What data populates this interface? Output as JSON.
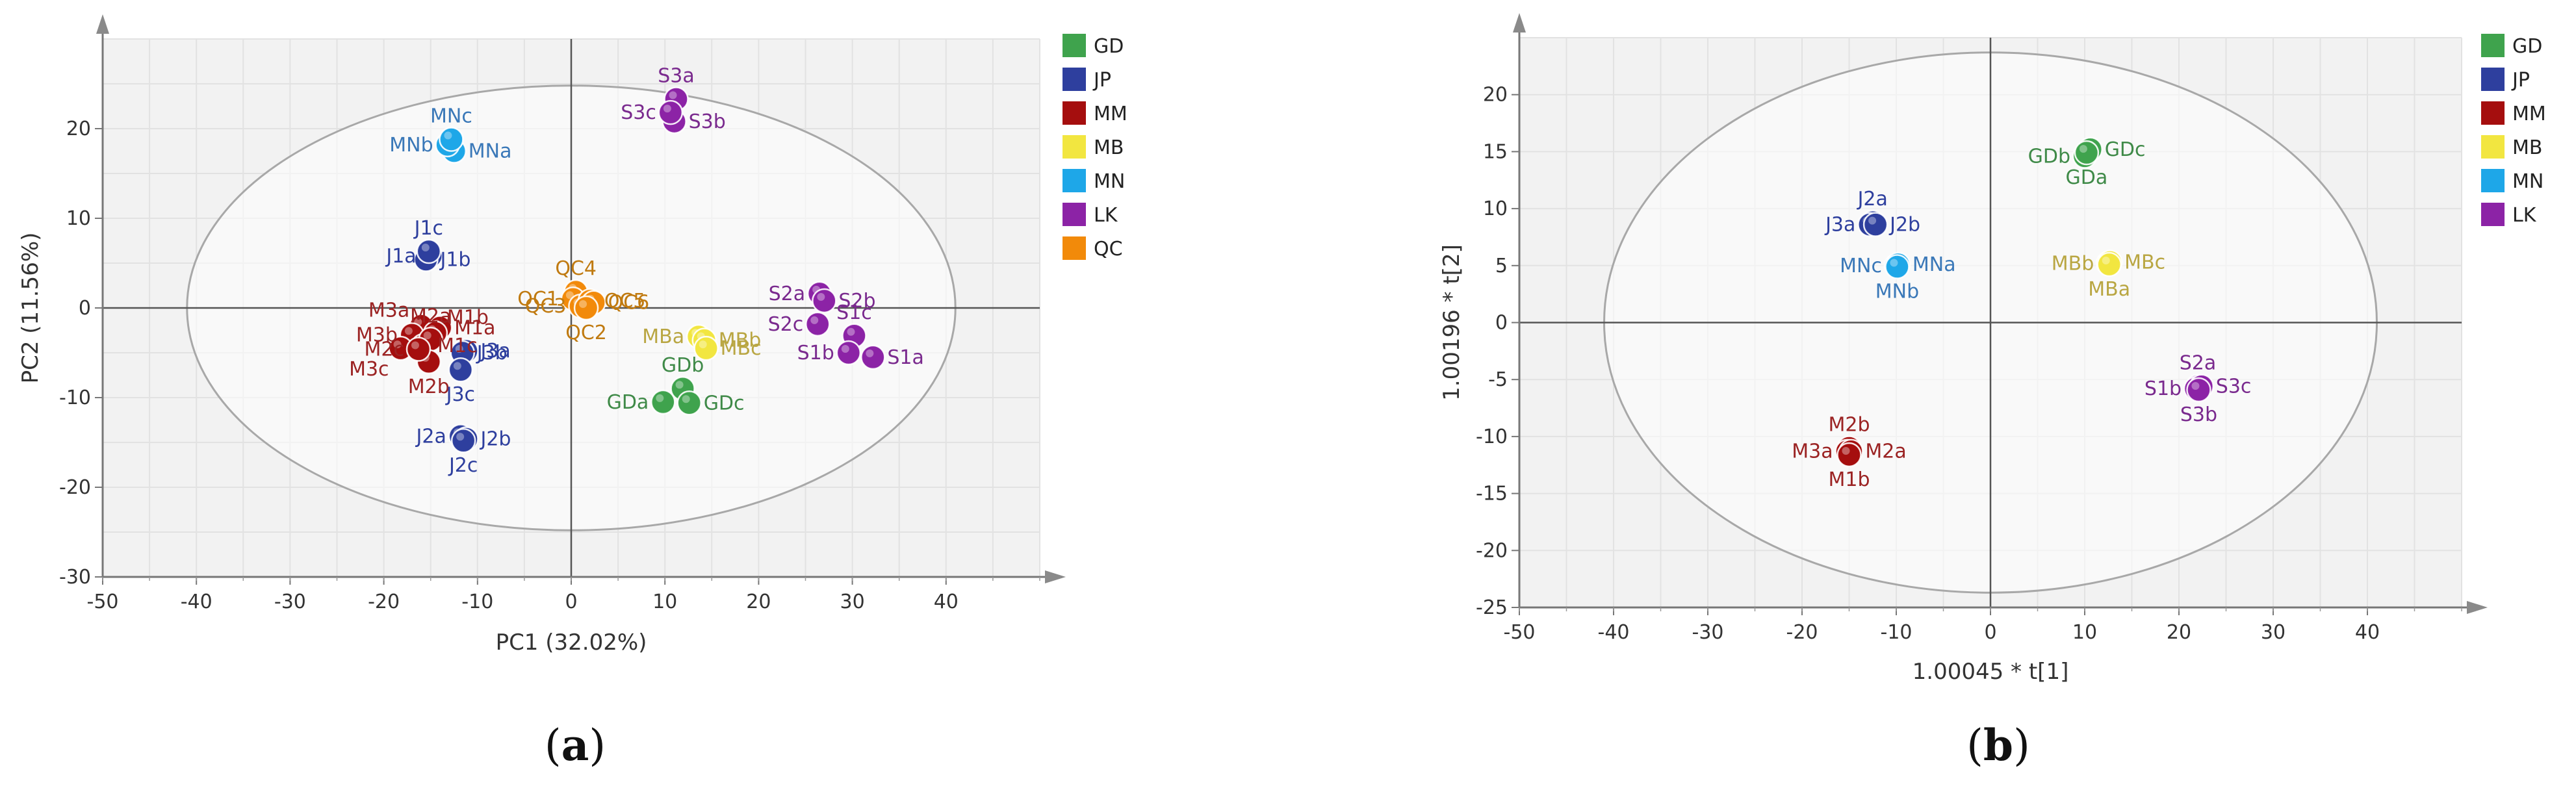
{
  "captions": {
    "a_open": "(",
    "a_letter": "a",
    "a_close": ")",
    "b_open": "(",
    "b_letter": "b",
    "b_close": ")"
  },
  "chart_data": [
    {
      "id": "a",
      "type": "scatter",
      "title": "",
      "xlabel": "PC1 (32.02%)",
      "ylabel": "PC2 (11.56%)",
      "xlim": [
        -50,
        50
      ],
      "ylim": [
        -30,
        30
      ],
      "x_ticks": [
        -50,
        -40,
        -30,
        -20,
        -10,
        0,
        10,
        20,
        30,
        40
      ],
      "y_ticks": [
        -30,
        -20,
        -10,
        0,
        10,
        20
      ],
      "grid": true,
      "ellipse": {
        "cx": 0,
        "cy": 0,
        "rx": 41,
        "ry": 24.8
      },
      "legend_position": "right",
      "legend": [
        {
          "name": "GD",
          "color": "#3fa34d"
        },
        {
          "name": "JP",
          "color": "#2e3f9e"
        },
        {
          "name": "MM",
          "color": "#a50e0e"
        },
        {
          "name": "MB",
          "color": "#f2e640"
        },
        {
          "name": "MN",
          "color": "#1ea7e8"
        },
        {
          "name": "LK",
          "color": "#8c23a6"
        },
        {
          "name": "QC",
          "color": "#f28a0a"
        }
      ],
      "points": [
        {
          "label": "MNa",
          "x": -12.5,
          "y": 17.5,
          "group": "MN",
          "color": "#1ea7e8",
          "text_color": "#3a78b8",
          "anchor": "right"
        },
        {
          "label": "MNb",
          "x": -13.2,
          "y": 18.2,
          "group": "MN",
          "color": "#1ea7e8",
          "text_color": "#3a78b8",
          "anchor": "left"
        },
        {
          "label": "MNc",
          "x": -12.8,
          "y": 18.8,
          "group": "MN",
          "color": "#1ea7e8",
          "text_color": "#3a78b8",
          "anchor": "above"
        },
        {
          "label": "S3a",
          "x": 11.2,
          "y": 23.3,
          "group": "LK",
          "color": "#8c23a6",
          "text_color": "#7a2a8e",
          "anchor": "above"
        },
        {
          "label": "S3b",
          "x": 11.0,
          "y": 20.8,
          "group": "LK",
          "color": "#8c23a6",
          "text_color": "#7a2a8e",
          "anchor": "right"
        },
        {
          "label": "S3c",
          "x": 10.6,
          "y": 21.8,
          "group": "LK",
          "color": "#8c23a6",
          "text_color": "#7a2a8e",
          "anchor": "left"
        },
        {
          "label": "J1a",
          "x": -15.0,
          "y": 5.8,
          "group": "JP",
          "color": "#2e3f9e",
          "text_color": "#2e3f9e",
          "anchor": "left"
        },
        {
          "label": "J1b",
          "x": -15.5,
          "y": 5.4,
          "group": "JP",
          "color": "#2e3f9e",
          "text_color": "#2e3f9e",
          "anchor": "right"
        },
        {
          "label": "J1c",
          "x": -15.2,
          "y": 6.3,
          "group": "JP",
          "color": "#2e3f9e",
          "text_color": "#2e3f9e",
          "anchor": "above"
        },
        {
          "label": "QC4",
          "x": 0.5,
          "y": 1.8,
          "group": "QC",
          "color": "#f28a0a",
          "text_color": "#c07a10",
          "anchor": "above"
        },
        {
          "label": "QC1",
          "x": 0.2,
          "y": 1.0,
          "group": "QC",
          "color": "#f28a0a",
          "text_color": "#c07a10",
          "anchor": "left"
        },
        {
          "label": "QC3",
          "x": 1.0,
          "y": 0.2,
          "group": "QC",
          "color": "#f28a0a",
          "text_color": "#c07a10",
          "anchor": "left"
        },
        {
          "label": "QC5",
          "x": 2.0,
          "y": 0.8,
          "group": "QC",
          "color": "#f28a0a",
          "text_color": "#c07a10",
          "anchor": "right"
        },
        {
          "label": "QC6",
          "x": 2.4,
          "y": 0.6,
          "group": "QC",
          "color": "#f28a0a",
          "text_color": "#c07a10",
          "anchor": "right"
        },
        {
          "label": "QC2",
          "x": 1.6,
          "y": 0.0,
          "group": "QC",
          "color": "#f28a0a",
          "text_color": "#c07a10",
          "anchor": "below"
        },
        {
          "label": "M3a",
          "x": -16.0,
          "y": -2.0,
          "group": "MM",
          "color": "#a50e0e",
          "text_color": "#9b2323",
          "anchor": "above-left"
        },
        {
          "label": "M3b",
          "x": -17.0,
          "y": -3.0,
          "group": "MM",
          "color": "#a50e0e",
          "text_color": "#9b2323",
          "anchor": "left"
        },
        {
          "label": "M3c",
          "x": -18.2,
          "y": -4.5,
          "group": "MM",
          "color": "#a50e0e",
          "text_color": "#9b2323",
          "anchor": "below-left"
        },
        {
          "label": "M1a",
          "x": -14.0,
          "y": -2.2,
          "group": "MM",
          "color": "#a50e0e",
          "text_color": "#9b2323",
          "anchor": "right"
        },
        {
          "label": "M1b",
          "x": -14.5,
          "y": -2.8,
          "group": "MM",
          "color": "#a50e0e",
          "text_color": "#9b2323",
          "anchor": "above-right"
        },
        {
          "label": "M1c",
          "x": -15.8,
          "y": -4.2,
          "group": "MM",
          "color": "#a50e0e",
          "text_color": "#9b2323",
          "anchor": "right"
        },
        {
          "label": "M2a",
          "x": -15.0,
          "y": -3.5,
          "group": "MM",
          "color": "#a50e0e",
          "text_color": "#9b2323",
          "anchor": "above"
        },
        {
          "label": "M2b",
          "x": -15.2,
          "y": -6.0,
          "group": "MM",
          "color": "#a50e0e",
          "text_color": "#9b2323",
          "anchor": "below"
        },
        {
          "label": "M2c",
          "x": -16.3,
          "y": -4.6,
          "group": "MM",
          "color": "#a50e0e",
          "text_color": "#9b2323",
          "anchor": "left"
        },
        {
          "label": "J3a",
          "x": -11.2,
          "y": -4.8,
          "group": "JP",
          "color": "#2e3f9e",
          "text_color": "#2e3f9e",
          "anchor": "right"
        },
        {
          "label": "J3b",
          "x": -11.6,
          "y": -5.0,
          "group": "JP",
          "color": "#2e3f9e",
          "text_color": "#2e3f9e",
          "anchor": "right"
        },
        {
          "label": "J3c",
          "x": -11.8,
          "y": -6.9,
          "group": "JP",
          "color": "#2e3f9e",
          "text_color": "#2e3f9e",
          "anchor": "below"
        },
        {
          "label": "J2a",
          "x": -11.8,
          "y": -14.3,
          "group": "JP",
          "color": "#2e3f9e",
          "text_color": "#2e3f9e",
          "anchor": "left"
        },
        {
          "label": "J2b",
          "x": -11.2,
          "y": -14.6,
          "group": "JP",
          "color": "#2e3f9e",
          "text_color": "#2e3f9e",
          "anchor": "right"
        },
        {
          "label": "J2c",
          "x": -11.5,
          "y": -14.8,
          "group": "JP",
          "color": "#2e3f9e",
          "text_color": "#2e3f9e",
          "anchor": "below"
        },
        {
          "label": "S2a",
          "x": 26.5,
          "y": 1.6,
          "group": "LK",
          "color": "#8c23a6",
          "text_color": "#7a2a8e",
          "anchor": "left"
        },
        {
          "label": "S2b",
          "x": 27.0,
          "y": 0.8,
          "group": "LK",
          "color": "#8c23a6",
          "text_color": "#7a2a8e",
          "anchor": "right"
        },
        {
          "label": "S2c",
          "x": 26.3,
          "y": -1.8,
          "group": "LK",
          "color": "#8c23a6",
          "text_color": "#7a2a8e",
          "anchor": "left"
        },
        {
          "label": "S1c",
          "x": 30.2,
          "y": -3.1,
          "group": "LK",
          "color": "#8c23a6",
          "text_color": "#7a2a8e",
          "anchor": "above"
        },
        {
          "label": "S1b",
          "x": 29.6,
          "y": -5.0,
          "group": "LK",
          "color": "#8c23a6",
          "text_color": "#7a2a8e",
          "anchor": "left"
        },
        {
          "label": "S1a",
          "x": 32.2,
          "y": -5.5,
          "group": "LK",
          "color": "#8c23a6",
          "text_color": "#7a2a8e",
          "anchor": "right"
        },
        {
          "label": "MBa",
          "x": 13.6,
          "y": -3.2,
          "group": "MB",
          "color": "#f2e640",
          "text_color": "#b9a642",
          "anchor": "left"
        },
        {
          "label": "MBb",
          "x": 14.2,
          "y": -3.6,
          "group": "MB",
          "color": "#f2e640",
          "text_color": "#b9a642",
          "anchor": "right"
        },
        {
          "label": "MBc",
          "x": 14.4,
          "y": -4.5,
          "group": "MB",
          "color": "#f2e640",
          "text_color": "#b9a642",
          "anchor": "right"
        },
        {
          "label": "GDb",
          "x": 11.9,
          "y": -9.0,
          "group": "GD",
          "color": "#3fa34d",
          "text_color": "#3f8a48",
          "anchor": "above"
        },
        {
          "label": "GDa",
          "x": 9.8,
          "y": -10.5,
          "group": "GD",
          "color": "#3fa34d",
          "text_color": "#3f8a48",
          "anchor": "left"
        },
        {
          "label": "GDc",
          "x": 12.6,
          "y": -10.6,
          "group": "GD",
          "color": "#3fa34d",
          "text_color": "#3f8a48",
          "anchor": "right"
        }
      ]
    },
    {
      "id": "b",
      "type": "scatter",
      "title": "",
      "xlabel": "1.00045 * t[1]",
      "ylabel": "1.00196 * t[2]",
      "xlim": [
        -50,
        50
      ],
      "ylim": [
        -25,
        25
      ],
      "x_ticks": [
        -50,
        -40,
        -30,
        -20,
        -10,
        0,
        10,
        20,
        30,
        40
      ],
      "y_ticks": [
        -25,
        -20,
        -15,
        -10,
        -5,
        0,
        5,
        10,
        15,
        20
      ],
      "grid": true,
      "ellipse": {
        "cx": 0,
        "cy": 0,
        "rx": 41,
        "ry": 23.7
      },
      "legend_position": "right",
      "legend": [
        {
          "name": "GD",
          "color": "#3fa34d"
        },
        {
          "name": "JP",
          "color": "#2e3f9e"
        },
        {
          "name": "MM",
          "color": "#a50e0e"
        },
        {
          "name": "MB",
          "color": "#f2e640"
        },
        {
          "name": "MN",
          "color": "#1ea7e8"
        },
        {
          "name": "LK",
          "color": "#8c23a6"
        }
      ],
      "points": [
        {
          "label": "GDb",
          "x": 10.0,
          "y": 14.6,
          "group": "GD",
          "color": "#3fa34d",
          "text_color": "#3f8a48",
          "anchor": "left"
        },
        {
          "label": "GDc",
          "x": 10.6,
          "y": 15.2,
          "group": "GD",
          "color": "#3fa34d",
          "text_color": "#3f8a48",
          "anchor": "right"
        },
        {
          "label": "GDa",
          "x": 10.2,
          "y": 14.9,
          "group": "GD",
          "color": "#3fa34d",
          "text_color": "#3f8a48",
          "anchor": "below"
        },
        {
          "label": "J2a",
          "x": -12.5,
          "y": 8.8,
          "group": "JP",
          "color": "#2e3f9e",
          "text_color": "#2e3f9e",
          "anchor": "above"
        },
        {
          "label": "J3a",
          "x": -12.8,
          "y": 8.6,
          "group": "JP",
          "color": "#2e3f9e",
          "text_color": "#2e3f9e",
          "anchor": "left"
        },
        {
          "label": "J2b",
          "x": -12.2,
          "y": 8.6,
          "group": "JP",
          "color": "#2e3f9e",
          "text_color": "#2e3f9e",
          "anchor": "right"
        },
        {
          "label": "MNc",
          "x": -10.0,
          "y": 5.0,
          "group": "MN",
          "color": "#1ea7e8",
          "text_color": "#3a78b8",
          "anchor": "left"
        },
        {
          "label": "MNa",
          "x": -9.8,
          "y": 5.1,
          "group": "MN",
          "color": "#1ea7e8",
          "text_color": "#3a78b8",
          "anchor": "right"
        },
        {
          "label": "MNb",
          "x": -9.9,
          "y": 4.9,
          "group": "MN",
          "color": "#1ea7e8",
          "text_color": "#3a78b8",
          "anchor": "below"
        },
        {
          "label": "MBb",
          "x": 12.5,
          "y": 5.2,
          "group": "MB",
          "color": "#f2e640",
          "text_color": "#b9a642",
          "anchor": "left"
        },
        {
          "label": "MBc",
          "x": 12.7,
          "y": 5.3,
          "group": "MB",
          "color": "#f2e640",
          "text_color": "#b9a642",
          "anchor": "right"
        },
        {
          "label": "MBa",
          "x": 12.6,
          "y": 5.1,
          "group": "MB",
          "color": "#f2e640",
          "text_color": "#b9a642",
          "anchor": "below"
        },
        {
          "label": "S2a",
          "x": 22.0,
          "y": -5.6,
          "group": "LK",
          "color": "#8c23a6",
          "text_color": "#7a2a8e",
          "anchor": "above"
        },
        {
          "label": "S1b",
          "x": 21.8,
          "y": -5.8,
          "group": "LK",
          "color": "#8c23a6",
          "text_color": "#7a2a8e",
          "anchor": "left"
        },
        {
          "label": "S3c",
          "x": 22.4,
          "y": -5.6,
          "group": "LK",
          "color": "#8c23a6",
          "text_color": "#7a2a8e",
          "anchor": "right"
        },
        {
          "label": "S3b",
          "x": 22.1,
          "y": -5.9,
          "group": "LK",
          "color": "#8c23a6",
          "text_color": "#7a2a8e",
          "anchor": "below"
        },
        {
          "label": "M2b",
          "x": -15.0,
          "y": -11.0,
          "group": "MM",
          "color": "#a50e0e",
          "text_color": "#9b2323",
          "anchor": "above"
        },
        {
          "label": "M3a",
          "x": -15.2,
          "y": -11.3,
          "group": "MM",
          "color": "#a50e0e",
          "text_color": "#9b2323",
          "anchor": "left"
        },
        {
          "label": "M2a",
          "x": -14.8,
          "y": -11.3,
          "group": "MM",
          "color": "#a50e0e",
          "text_color": "#9b2323",
          "anchor": "right"
        },
        {
          "label": "M1b",
          "x": -15.0,
          "y": -11.6,
          "group": "MM",
          "color": "#a50e0e",
          "text_color": "#9b2323",
          "anchor": "below"
        }
      ]
    }
  ]
}
